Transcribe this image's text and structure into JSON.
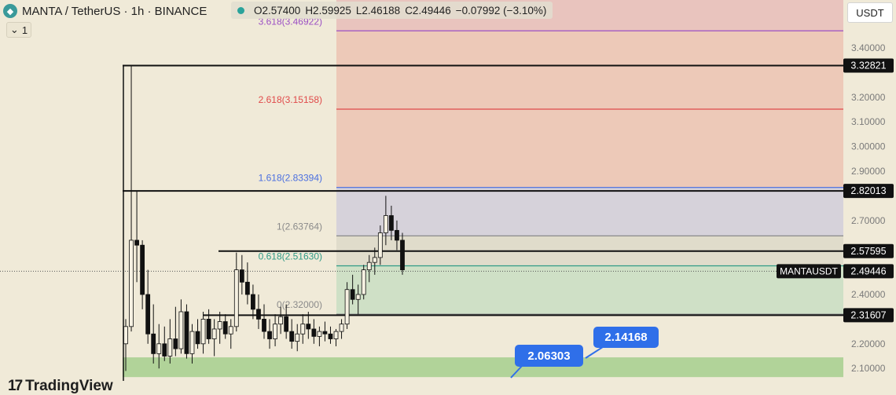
{
  "header": {
    "symbol": "MANTA / TetherUS · 1h · BINANCE",
    "ohlc": {
      "open": "O2.57400",
      "high": "H2.59925",
      "low": "L2.46188",
      "close": "C2.49446",
      "change": "−0.07992 (−3.10%)"
    },
    "indicator_count": "1",
    "currency": "USDT"
  },
  "branding": {
    "logo_mark": "17",
    "logo_text": "TradingView"
  },
  "colors": {
    "background": "#f0ead8",
    "up_candle": "#f6f1e2",
    "down_candle": "#111111",
    "fib_3618": "#9b4fc4",
    "fib_2618": "#e04a4a",
    "fib_1618": "#4a6fe0",
    "fib_1": "#8a8a8a",
    "fib_0618": "#2f9a86",
    "fib_0": "#8a8a8a",
    "callout": "#2f6fe9",
    "support_zone": "#a6cf8e"
  },
  "chart_data": {
    "type": "candlestick",
    "symbol": "MANTAUSDT",
    "ylim": [
      2.06,
      3.52
    ],
    "y_ticks": [
      "3.40000",
      "3.20000",
      "3.10000",
      "3.00000",
      "2.90000",
      "2.70000",
      "2.40000",
      "2.20000",
      "2.10000"
    ],
    "price_tags": [
      {
        "label": "3.32821",
        "value": 3.32821
      },
      {
        "label": "2.82013",
        "value": 2.82013
      },
      {
        "label": "2.57595",
        "value": 2.57595
      },
      {
        "label": "2.49446",
        "value": 2.49446,
        "name": "MANTAUSDT"
      },
      {
        "label": "2.31607",
        "value": 2.31607
      }
    ],
    "fib_levels": [
      {
        "label": "3.618(3.46922)",
        "value": 3.46922
      },
      {
        "label": "2.618(3.15158)",
        "value": 3.15158
      },
      {
        "label": "1.618(2.83394)",
        "value": 2.83394
      },
      {
        "label": "1(2.63764)",
        "value": 2.63764
      },
      {
        "label": "0.618(2.51630)",
        "value": 2.5163
      },
      {
        "label": "0(2.32000)",
        "value": 2.32
      }
    ],
    "horizontal_lines": [
      3.32821,
      2.82013,
      2.57595,
      2.31607
    ],
    "support_zone": [
      2.145,
      2.065
    ],
    "callouts": [
      "2.06303",
      "2.14168"
    ],
    "candles": [
      [
        2.2,
        2.3,
        2.09,
        2.27
      ],
      [
        2.27,
        3.328,
        2.25,
        2.62
      ],
      [
        2.62,
        2.82,
        2.45,
        2.6
      ],
      [
        2.6,
        2.62,
        2.34,
        2.4
      ],
      [
        2.4,
        2.5,
        2.2,
        2.24
      ],
      [
        2.24,
        2.36,
        2.12,
        2.16
      ],
      [
        2.16,
        2.28,
        2.1,
        2.2
      ],
      [
        2.2,
        2.27,
        2.13,
        2.15
      ],
      [
        2.15,
        2.3,
        2.12,
        2.22
      ],
      [
        2.22,
        2.35,
        2.15,
        2.18
      ],
      [
        2.18,
        2.38,
        2.16,
        2.33
      ],
      [
        2.33,
        2.36,
        2.14,
        2.16
      ],
      [
        2.16,
        2.28,
        2.12,
        2.25
      ],
      [
        2.25,
        2.3,
        2.18,
        2.2
      ],
      [
        2.2,
        2.33,
        2.16,
        2.3
      ],
      [
        2.3,
        2.34,
        2.2,
        2.22
      ],
      [
        2.22,
        2.3,
        2.15,
        2.26
      ],
      [
        2.26,
        2.33,
        2.2,
        2.29
      ],
      [
        2.29,
        2.32,
        2.22,
        2.24
      ],
      [
        2.24,
        2.3,
        2.18,
        2.27
      ],
      [
        2.27,
        2.57,
        2.25,
        2.5
      ],
      [
        2.5,
        2.56,
        2.4,
        2.45
      ],
      [
        2.45,
        2.53,
        2.36,
        2.4
      ],
      [
        2.4,
        2.44,
        2.3,
        2.34
      ],
      [
        2.34,
        2.4,
        2.26,
        2.3
      ],
      [
        2.3,
        2.36,
        2.22,
        2.25
      ],
      [
        2.25,
        2.3,
        2.18,
        2.22
      ],
      [
        2.22,
        2.32,
        2.19,
        2.28
      ],
      [
        2.28,
        2.35,
        2.24,
        2.31
      ],
      [
        2.31,
        2.36,
        2.22,
        2.25
      ],
      [
        2.25,
        2.3,
        2.18,
        2.21
      ],
      [
        2.21,
        2.28,
        2.17,
        2.24
      ],
      [
        2.24,
        2.32,
        2.2,
        2.28
      ],
      [
        2.28,
        2.33,
        2.22,
        2.26
      ],
      [
        2.26,
        2.3,
        2.2,
        2.23
      ],
      [
        2.23,
        2.27,
        2.19,
        2.25
      ],
      [
        2.25,
        2.29,
        2.21,
        2.24
      ],
      [
        2.24,
        2.27,
        2.2,
        2.22
      ],
      [
        2.22,
        2.26,
        2.19,
        2.25
      ],
      [
        2.25,
        2.3,
        2.22,
        2.28
      ],
      [
        2.28,
        2.45,
        2.26,
        2.42
      ],
      [
        2.42,
        2.48,
        2.36,
        2.38
      ],
      [
        2.38,
        2.44,
        2.32,
        2.4
      ],
      [
        2.4,
        2.52,
        2.38,
        2.5
      ],
      [
        2.5,
        2.56,
        2.45,
        2.53
      ],
      [
        2.53,
        2.59,
        2.48,
        2.55
      ],
      [
        2.55,
        2.68,
        2.52,
        2.65
      ],
      [
        2.65,
        2.8,
        2.6,
        2.72
      ],
      [
        2.72,
        2.76,
        2.62,
        2.66
      ],
      [
        2.66,
        2.7,
        2.58,
        2.62
      ],
      [
        2.62,
        2.65,
        2.48,
        2.5
      ]
    ]
  }
}
